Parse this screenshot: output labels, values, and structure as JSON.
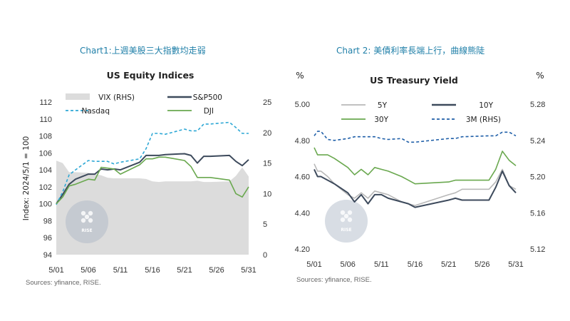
{
  "captions": {
    "chart1": "Chart1:上週美股三大指數均走弱",
    "chart2": "Chart 2: 美債利率長端上行，曲線熊陡"
  },
  "sources": {
    "chart1": "Sources: yfinance, RISE.",
    "chart2": "Sources: yfinance, RISE."
  },
  "watermark": "RISE",
  "chart_data": [
    {
      "type": "line",
      "title": "US Equity Indices",
      "ylabel": "Index: 2024/5/1 = 100",
      "ylim": [
        94,
        112
      ],
      "yticks": [
        94,
        96,
        98,
        100,
        102,
        104,
        106,
        108,
        110,
        112
      ],
      "y2lim": [
        0,
        25
      ],
      "y2ticks": [
        0,
        5,
        10,
        15,
        20,
        25
      ],
      "xlim": [
        0,
        30
      ],
      "xticks": [
        {
          "x": 0,
          "label": "5/01"
        },
        {
          "x": 5,
          "label": "5/06"
        },
        {
          "x": 10,
          "label": "5/11"
        },
        {
          "x": 15,
          "label": "5/16"
        },
        {
          "x": 20,
          "label": "5/21"
        },
        {
          "x": 25,
          "label": "5/26"
        },
        {
          "x": 30,
          "label": "5/31"
        }
      ],
      "x": [
        0,
        1,
        2,
        3,
        5,
        6,
        7,
        8,
        9,
        10,
        13,
        14,
        15,
        16,
        17,
        20,
        21,
        22,
        23,
        24,
        27,
        28,
        29,
        30
      ],
      "series": [
        {
          "name": "VIX (RHS)",
          "axis": "right",
          "style": "area",
          "color": "#dcdcdc",
          "values": [
            15.4,
            15.0,
            13.5,
            13.5,
            13.4,
            13.2,
            13.0,
            12.6,
            12.5,
            12.5,
            12.5,
            12.4,
            12.0,
            11.9,
            12.0,
            12.0,
            12.0,
            12.1,
            11.9,
            11.9,
            12.0,
            12.9,
            14.3,
            12.8
          ]
        },
        {
          "name": "S&P500",
          "axis": "left",
          "style": "solid",
          "color": "#3d4a5c",
          "values": [
            100.0,
            101.1,
            102.3,
            102.9,
            103.5,
            103.5,
            104.1,
            104.0,
            104.1,
            104.0,
            104.9,
            105.7,
            105.7,
            105.7,
            105.8,
            105.9,
            105.7,
            104.8,
            105.6,
            105.6,
            105.7,
            105.0,
            104.5,
            105.2
          ]
        },
        {
          "name": "Nasdaq",
          "axis": "left",
          "style": "dashed",
          "color": "#2ea8d5",
          "values": [
            99.9,
            101.4,
            103.4,
            104.0,
            105.1,
            105.0,
            105.0,
            105.0,
            104.7,
            104.9,
            105.3,
            106.5,
            108.3,
            108.3,
            108.2,
            108.8,
            108.6,
            108.6,
            109.4,
            109.4,
            109.6,
            109.0,
            108.3,
            108.3
          ]
        },
        {
          "name": "DJI",
          "axis": "left",
          "style": "solid",
          "color": "#6aa84f",
          "values": [
            100.0,
            100.8,
            102.1,
            102.3,
            102.9,
            102.8,
            104.3,
            104.2,
            104.1,
            103.5,
            104.6,
            105.3,
            105.3,
            105.5,
            105.5,
            105.1,
            104.4,
            103.1,
            103.1,
            103.1,
            102.8,
            101.2,
            100.8,
            102.0
          ]
        }
      ]
    },
    {
      "type": "line",
      "title": "US Treasury Yield",
      "ylabel": "%",
      "y2label": "%",
      "ylim": [
        4.2,
        5.0
      ],
      "yticks": [
        4.2,
        4.4,
        4.6,
        4.8,
        5.0
      ],
      "yticklabels": [
        "4.20",
        "4.40",
        "4.60",
        "4.80",
        "5.00"
      ],
      "y2lim": [
        5.12,
        5.28
      ],
      "y2ticks": [
        5.12,
        5.16,
        5.2,
        5.24,
        5.28
      ],
      "y2ticklabels": [
        "5.12",
        "5.16",
        "5.20",
        "5.24",
        "5.28"
      ],
      "xlim": [
        0,
        30
      ],
      "xticks": [
        {
          "x": 0,
          "label": "5/01"
        },
        {
          "x": 5,
          "label": "5/06"
        },
        {
          "x": 10,
          "label": "5/11"
        },
        {
          "x": 15,
          "label": "5/16"
        },
        {
          "x": 20,
          "label": "5/21"
        },
        {
          "x": 25,
          "label": "5/26"
        },
        {
          "x": 30,
          "label": "5/31"
        }
      ],
      "x": [
        0,
        0.5,
        1,
        2,
        3,
        5,
        6,
        7,
        8,
        9,
        10,
        11,
        13,
        14,
        15,
        20,
        21,
        22,
        26,
        27,
        28,
        29,
        30
      ],
      "series": [
        {
          "name": "5Y",
          "axis": "left",
          "style": "solid",
          "color": "#b8b8b8",
          "values": [
            4.67,
            4.63,
            4.63,
            4.6,
            4.56,
            4.5,
            4.48,
            4.51,
            4.48,
            4.52,
            4.51,
            4.5,
            4.46,
            4.45,
            4.44,
            4.5,
            4.51,
            4.53,
            4.53,
            4.57,
            4.64,
            4.55,
            4.53
          ]
        },
        {
          "name": "10Y",
          "axis": "left",
          "style": "solid",
          "color": "#3d4a5c",
          "values": [
            4.64,
            4.6,
            4.6,
            4.58,
            4.56,
            4.51,
            4.46,
            4.5,
            4.45,
            4.5,
            4.5,
            4.48,
            4.46,
            4.45,
            4.43,
            4.47,
            4.48,
            4.47,
            4.47,
            4.54,
            4.63,
            4.55,
            4.51
          ]
        },
        {
          "name": "30Y",
          "axis": "left",
          "style": "solid",
          "color": "#6aa84f",
          "values": [
            4.76,
            4.72,
            4.72,
            4.72,
            4.7,
            4.65,
            4.61,
            4.64,
            4.61,
            4.65,
            4.64,
            4.63,
            4.6,
            4.58,
            4.56,
            4.57,
            4.58,
            4.58,
            4.58,
            4.64,
            4.74,
            4.69,
            4.66
          ]
        },
        {
          "name": "3M (RHS)",
          "axis": "right",
          "style": "dashed",
          "color": "#1f5fa8",
          "values": [
            5.245,
            5.25,
            5.25,
            5.241,
            5.24,
            5.242,
            5.244,
            5.244,
            5.244,
            5.244,
            5.242,
            5.241,
            5.242,
            5.238,
            5.238,
            5.242,
            5.242,
            5.244,
            5.245,
            5.245,
            5.249,
            5.249,
            5.245
          ]
        }
      ]
    }
  ]
}
